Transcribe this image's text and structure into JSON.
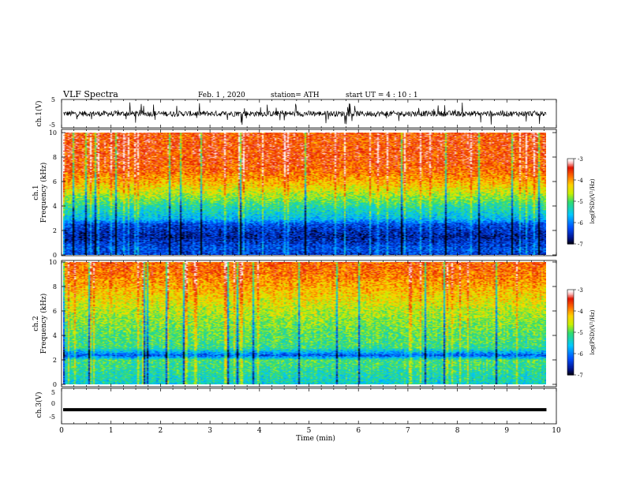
{
  "header": {
    "title": "VLF  Spectra",
    "date": "Feb. 1  , 2020",
    "station": "station= ATH",
    "start": "start  UT  =   4  : 10 : 1"
  },
  "chart_data": [
    {
      "type": "line",
      "panel": "ch1-waveform",
      "ylabel": "ch.1(V)",
      "ylim": [
        -5,
        5
      ],
      "yticks": [
        "5",
        "-5"
      ],
      "xlim": [
        0,
        10
      ],
      "data_end_min": 9.8,
      "signal": "noisy broadband waveform around 0 V with frequent spikes reaching about ±4.5 V"
    },
    {
      "type": "heatmap",
      "panel": "ch1-spectrogram",
      "ylabel": "ch.1\nFrequency (kHz)",
      "ylim": [
        0,
        10
      ],
      "yticks": [
        "0",
        "2",
        "4",
        "6",
        "8",
        "10"
      ],
      "xlim": [
        0,
        10
      ],
      "data_end_min": 9.8,
      "band_profile_kHz": [
        [
          0,
          -6.4
        ],
        [
          0.5,
          -6.2
        ],
        [
          1.5,
          -6.6
        ],
        [
          2.5,
          -6.3
        ],
        [
          3.0,
          -5.6
        ],
        [
          4.0,
          -5.2
        ],
        [
          5.0,
          -4.6
        ],
        [
          6.0,
          -4.1
        ],
        [
          7.0,
          -3.7
        ],
        [
          8.0,
          -3.6
        ],
        [
          10.0,
          -3.6
        ]
      ],
      "colorbar": {
        "label": "log(PSD)(V²/Hz)",
        "ticks": [
          "-3",
          "-4",
          "-5",
          "-6",
          "-7"
        ],
        "range": [
          -7,
          -3
        ]
      }
    },
    {
      "type": "heatmap",
      "panel": "ch2-spectrogram",
      "ylabel": "ch.2\nFrequency (kHz)",
      "ylim": [
        0,
        10
      ],
      "yticks": [
        "0",
        "2",
        "4",
        "6",
        "8",
        "10"
      ],
      "xlim": [
        0,
        10
      ],
      "data_end_min": 9.8,
      "band_profile_kHz": [
        [
          0,
          -5.4
        ],
        [
          1.0,
          -5.2
        ],
        [
          2.0,
          -5.0
        ],
        [
          2.4,
          -6.2
        ],
        [
          3.0,
          -5.1
        ],
        [
          4.5,
          -4.9
        ],
        [
          6.0,
          -4.6
        ],
        [
          7.5,
          -4.2
        ],
        [
          9.0,
          -3.8
        ],
        [
          10.0,
          -3.7
        ]
      ],
      "colorbar": {
        "label": "log(PSD)(V²/Hz)",
        "ticks": [
          "-3",
          "-4",
          "-5",
          "-6",
          "-7"
        ],
        "range": [
          -7,
          -3
        ]
      }
    },
    {
      "type": "line",
      "panel": "ch3-waveform",
      "ylabel": "ch.3(V)",
      "ylim": [
        -5,
        5
      ],
      "yticks": [
        "5",
        "0",
        "-5"
      ],
      "xlim": [
        0,
        10
      ],
      "data_end_min": 9.8,
      "constant_value": -1.5
    }
  ],
  "x_axis": {
    "label": "Time  (min)",
    "ticks": [
      "0",
      "1",
      "2",
      "3",
      "4",
      "5",
      "6",
      "7",
      "8",
      "9",
      "10"
    ]
  },
  "colors": {
    "scale": [
      "#000000",
      "#0018a0",
      "#0060ff",
      "#00c8ff",
      "#38e070",
      "#c8f000",
      "#ffd000",
      "#ff6a00",
      "#e01000",
      "#ffe6e6",
      "#ffffff"
    ]
  }
}
